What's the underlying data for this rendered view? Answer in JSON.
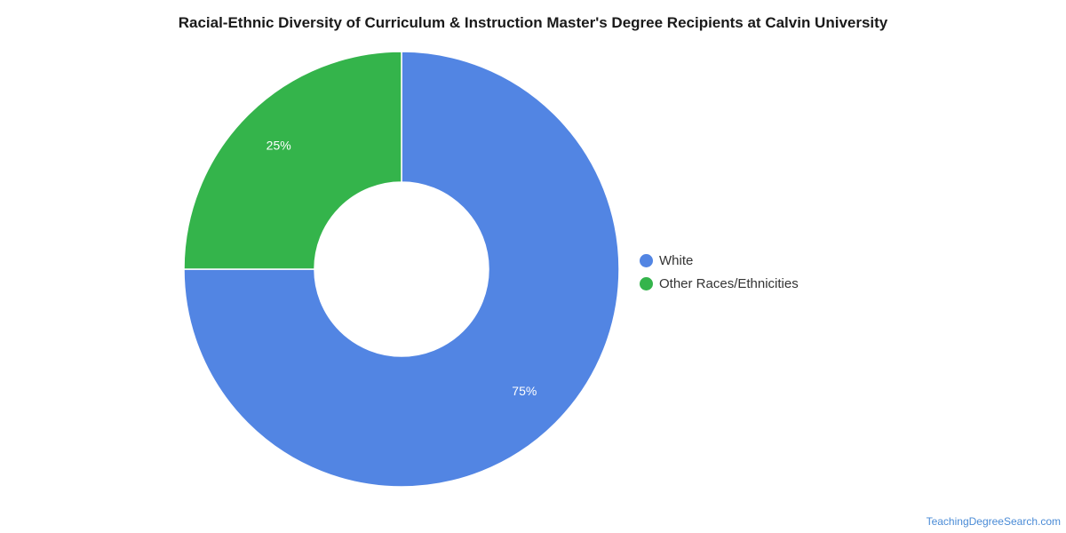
{
  "chart_data": {
    "type": "pie",
    "title": "Racial-Ethnic Diversity of Curriculum & Instruction Master's Degree Recipients at Calvin University",
    "categories": [
      "White",
      "Other Races/Ethnicities"
    ],
    "values": [
      75,
      25
    ],
    "labels": [
      "75%",
      "25%"
    ],
    "colors": [
      "#5285e3",
      "#34b44b"
    ],
    "donut": true,
    "legend": "right"
  },
  "watermark": "TeachingDegreeSearch.com"
}
